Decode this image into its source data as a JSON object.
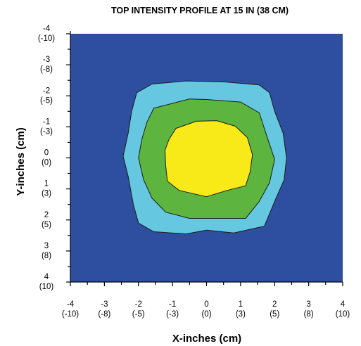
{
  "chart_data": {
    "type": "contour",
    "title": "TOP INTENSITY PROFILE AT 15 IN (38 CM)",
    "xlabel": "X-inches (cm)",
    "ylabel": "Y-inches (cm)",
    "xlim": [
      -4,
      4
    ],
    "ylim": [
      -4,
      4
    ],
    "y_axis_inverted": true,
    "grid": false,
    "x_ticks": [
      {
        "value": -4,
        "in": "-4",
        "cm": "(-10)"
      },
      {
        "value": -3,
        "in": "-3",
        "cm": "(-8)"
      },
      {
        "value": -2,
        "in": "-2",
        "cm": "(-5)"
      },
      {
        "value": -1,
        "in": "-1",
        "cm": "(-3)"
      },
      {
        "value": 0,
        "in": "0",
        "cm": "(0)"
      },
      {
        "value": 1,
        "in": "1",
        "cm": "(3)"
      },
      {
        "value": 2,
        "in": "2",
        "cm": "(5)"
      },
      {
        "value": 3,
        "in": "3",
        "cm": "(8)"
      },
      {
        "value": 4,
        "in": "4",
        "cm": "(10)"
      }
    ],
    "y_ticks": [
      {
        "value": -4,
        "in": "-4",
        "cm": "(-10)"
      },
      {
        "value": -3,
        "in": "-3",
        "cm": "(-8)"
      },
      {
        "value": -2,
        "in": "-2",
        "cm": "(-5)"
      },
      {
        "value": -1,
        "in": "-1",
        "cm": "(-3)"
      },
      {
        "value": 0,
        "in": "0",
        "cm": "(0)"
      },
      {
        "value": 1,
        "in": "1",
        "cm": "(3)"
      },
      {
        "value": 2,
        "in": "2",
        "cm": "(5)"
      },
      {
        "value": 3,
        "in": "3",
        "cm": "(8)"
      },
      {
        "value": 4,
        "in": "4",
        "cm": "(10)"
      }
    ],
    "background_color": "#2e4ea0",
    "contours": [
      {
        "color": "#66c7e0",
        "points": [
          [
            -2.05,
            -2.1
          ],
          [
            -1.6,
            -2.38
          ],
          [
            -0.6,
            -2.48
          ],
          [
            0.5,
            -2.45
          ],
          [
            1.55,
            -2.35
          ],
          [
            1.85,
            -2.1
          ],
          [
            2.0,
            -1.5
          ],
          [
            2.25,
            -0.8
          ],
          [
            2.35,
            0
          ],
          [
            2.28,
            0.7
          ],
          [
            2.0,
            1.4
          ],
          [
            1.7,
            2.2
          ],
          [
            0.8,
            2.42
          ],
          [
            0,
            2.33
          ],
          [
            -0.6,
            2.45
          ],
          [
            -1.55,
            2.38
          ],
          [
            -2.0,
            2.1
          ],
          [
            -2.15,
            1.5
          ],
          [
            -2.3,
            0.6
          ],
          [
            -2.45,
            -0.05
          ],
          [
            -2.3,
            -0.8
          ],
          [
            -2.2,
            -1.5
          ]
        ]
      },
      {
        "color": "#5db53f",
        "points": [
          [
            -1.55,
            -1.6
          ],
          [
            -0.5,
            -1.9
          ],
          [
            0,
            -1.88
          ],
          [
            1.0,
            -1.8
          ],
          [
            1.55,
            -1.45
          ],
          [
            1.8,
            -0.6
          ],
          [
            2.0,
            0.05
          ],
          [
            1.85,
            0.8
          ],
          [
            1.55,
            1.4
          ],
          [
            1.15,
            1.95
          ],
          [
            0.4,
            1.95
          ],
          [
            -0.5,
            1.95
          ],
          [
            -1.2,
            1.75
          ],
          [
            -1.6,
            1.3
          ],
          [
            -1.85,
            0.7
          ],
          [
            -2.0,
            0
          ],
          [
            -1.9,
            -0.6
          ],
          [
            -1.75,
            -1.15
          ]
        ]
      },
      {
        "color": "#f8ea18",
        "points": [
          [
            -0.9,
            -0.95
          ],
          [
            -0.3,
            -1.18
          ],
          [
            0.3,
            -1.2
          ],
          [
            0.85,
            -1.02
          ],
          [
            1.2,
            -0.65
          ],
          [
            1.35,
            -0.1
          ],
          [
            1.28,
            0.45
          ],
          [
            1.15,
            0.9
          ],
          [
            0.6,
            1.05
          ],
          [
            0,
            1.25
          ],
          [
            -0.8,
            1.05
          ],
          [
            -1.15,
            0.75
          ],
          [
            -1.2,
            0.25
          ],
          [
            -1.22,
            -0.25
          ],
          [
            -1.1,
            -0.6
          ]
        ]
      }
    ]
  }
}
